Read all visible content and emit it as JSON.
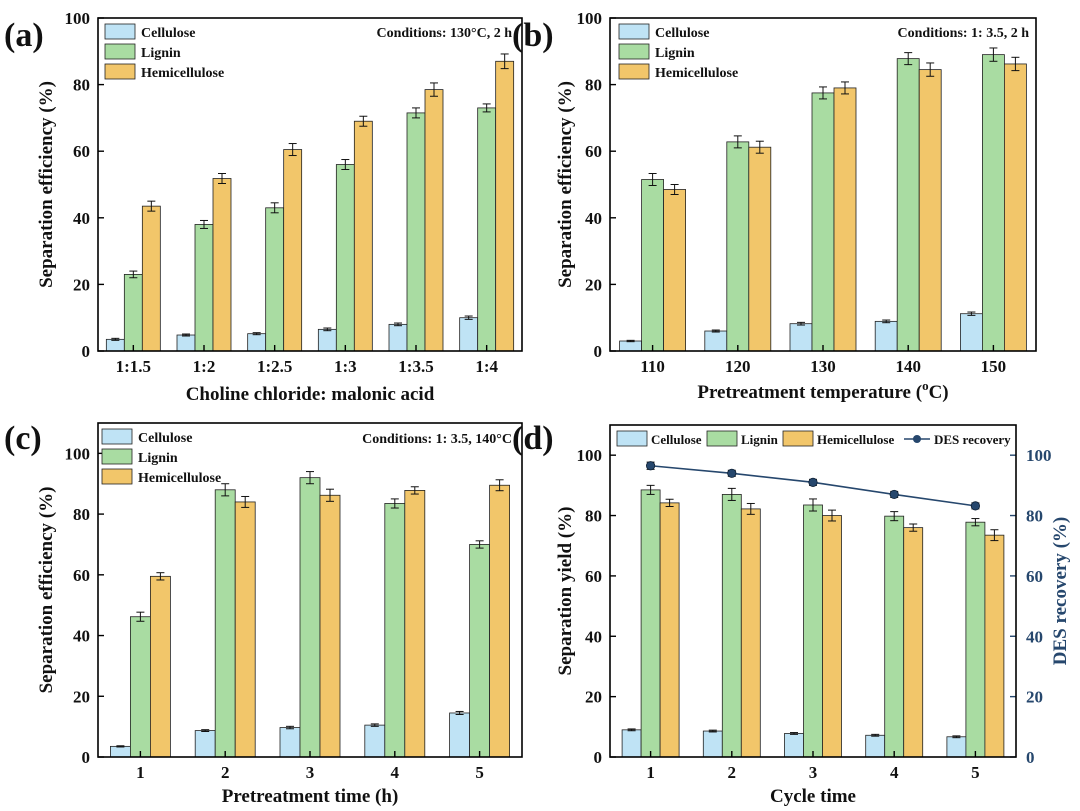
{
  "colors": {
    "cellulose": "#bfe3f5",
    "lignin": "#a9dca2",
    "hemicellulose": "#f2c66a",
    "des": "#26476d",
    "outline": "#222222"
  },
  "chart_data": [
    {
      "type": "bar",
      "panel": "(a)",
      "conditions": "Conditions: 130°C, 2 h",
      "xlabel": "Choline chloride: malonic acid",
      "ylabel": "Separation efficiency (%)",
      "ylim": [
        0,
        100
      ],
      "yticks": [
        0,
        20,
        40,
        60,
        80,
        100
      ],
      "categories": [
        "1:1.5",
        "1:2",
        "1:2.5",
        "1:3",
        "1:3.5",
        "1:4"
      ],
      "legend": [
        "Cellulose",
        "Lignin",
        "Hemicellulose"
      ],
      "series": [
        {
          "name": "Cellulose",
          "values": [
            3.5,
            4.8,
            5.2,
            6.5,
            8.0,
            10.0
          ],
          "errors": [
            0.3,
            0.3,
            0.3,
            0.4,
            0.4,
            0.5
          ]
        },
        {
          "name": "Lignin",
          "values": [
            23,
            38,
            43,
            56,
            71.5,
            73
          ],
          "errors": [
            1.0,
            1.2,
            1.5,
            1.5,
            1.5,
            1.2
          ]
        },
        {
          "name": "Hemicellulose",
          "values": [
            43.5,
            51.8,
            60.5,
            69,
            78.5,
            87
          ],
          "errors": [
            1.5,
            1.5,
            1.8,
            1.5,
            2.0,
            2.2
          ]
        }
      ]
    },
    {
      "type": "bar",
      "panel": "(b)",
      "conditions": "Conditions: 1: 3.5, 2 h",
      "xlabel": "Pretreatment temperature (°C)",
      "xlabel_parts": [
        "Pretreatment temperature (",
        "o",
        "C)"
      ],
      "ylabel": "Separation efficiency (%)",
      "ylim": [
        0,
        100
      ],
      "yticks": [
        0,
        20,
        40,
        60,
        80,
        100
      ],
      "categories": [
        "110",
        "120",
        "130",
        "140",
        "150"
      ],
      "legend": [
        "Cellulose",
        "Lignin",
        "Hemicellulose"
      ],
      "series": [
        {
          "name": "Cellulose",
          "values": [
            3.0,
            6.0,
            8.2,
            8.9,
            11.2
          ],
          "errors": [
            0.2,
            0.3,
            0.4,
            0.4,
            0.5
          ]
        },
        {
          "name": "Lignin",
          "values": [
            51.5,
            62.8,
            77.5,
            87.8,
            89
          ],
          "errors": [
            1.8,
            1.8,
            1.8,
            1.8,
            2.0
          ]
        },
        {
          "name": "Hemicellulose",
          "values": [
            48.5,
            61.2,
            79,
            84.5,
            86.2
          ],
          "errors": [
            1.5,
            1.8,
            1.8,
            2.0,
            2.0
          ]
        }
      ]
    },
    {
      "type": "bar",
      "panel": "(c)",
      "conditions": "Conditions: 1: 3.5, 140°C",
      "xlabel": "Pretreatment time (h)",
      "ylabel": "Separation efficiency (%)",
      "ylim": [
        0,
        110
      ],
      "yticks": [
        0,
        20,
        40,
        60,
        80,
        100
      ],
      "categories": [
        "1",
        "2",
        "3",
        "4",
        "5"
      ],
      "legend": [
        "Cellulose",
        "Lignin",
        "Hemicellulose"
      ],
      "series": [
        {
          "name": "Cellulose",
          "values": [
            3.5,
            8.7,
            9.7,
            10.5,
            14.5
          ],
          "errors": [
            0.2,
            0.3,
            0.4,
            0.4,
            0.5
          ]
        },
        {
          "name": "Lignin",
          "values": [
            46.2,
            88,
            92,
            83.5,
            70
          ],
          "errors": [
            1.5,
            2.0,
            2.0,
            1.5,
            1.2
          ]
        },
        {
          "name": "Hemicellulose",
          "values": [
            59.5,
            84,
            86.2,
            87.8,
            89.5
          ],
          "errors": [
            1.2,
            1.8,
            2.0,
            1.2,
            1.8
          ]
        }
      ]
    },
    {
      "type": "bar+line",
      "panel": "(d)",
      "xlabel": "Cycle time",
      "ylabel": "Separation yield (%)",
      "y2label": "DES recovery  (%)",
      "ylim": [
        0,
        110
      ],
      "yticks": [
        0,
        20,
        40,
        60,
        80,
        100
      ],
      "y2lim": [
        0,
        110
      ],
      "y2ticks": [
        0,
        20,
        40,
        60,
        80,
        100
      ],
      "categories": [
        "1",
        "2",
        "3",
        "4",
        "5"
      ],
      "legend": [
        "Cellulose",
        "Lignin",
        "Hemicellulose",
        "DES recovery"
      ],
      "series": [
        {
          "name": "Cellulose",
          "values": [
            9.0,
            8.6,
            7.8,
            7.2,
            6.7
          ],
          "errors": [
            0.3,
            0.3,
            0.3,
            0.3,
            0.3
          ]
        },
        {
          "name": "Lignin",
          "values": [
            88.5,
            87,
            83.5,
            79.8,
            77.8
          ],
          "errors": [
            1.5,
            2.0,
            2.0,
            1.5,
            1.2
          ]
        },
        {
          "name": "Hemicellulose",
          "values": [
            84.2,
            82.2,
            80,
            76,
            73.5
          ],
          "errors": [
            1.2,
            1.8,
            1.8,
            1.2,
            1.8
          ]
        }
      ],
      "line": {
        "name": "DES recovery",
        "values": [
          96.5,
          94,
          91,
          87,
          83.2
        ],
        "errors": [
          1.2,
          1.0,
          1.0,
          1.0,
          1.0
        ]
      }
    }
  ]
}
